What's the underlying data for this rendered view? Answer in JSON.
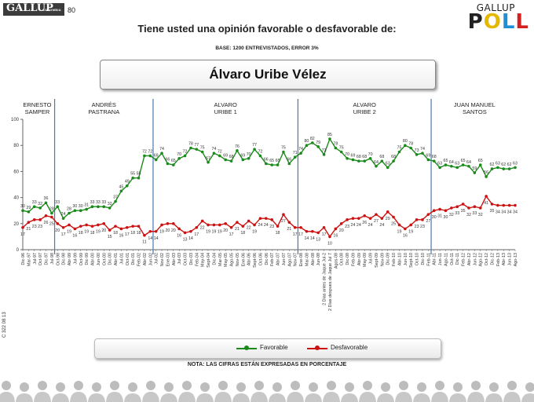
{
  "header": {
    "logo_text": "GALLUP",
    "logo_sub": "COLOMBIA",
    "page_number": "80",
    "poll_logo_top": "GALLUP",
    "poll_logo_bottom": "POLL",
    "title": "Tiene usted una opinión favorable o desfavorable de:",
    "base": "BASE: 1200 ENTREVISTADOS, ERROR 3%",
    "subject": "Álvaro Uribe Vélez"
  },
  "side_code": "C 322 08 13",
  "legend": {
    "favorable": "Favorable",
    "desfavorable": "Desfavorable"
  },
  "note": "NOTA: LAS CIFRAS ESTÁN EXPRESADAS EN PORCENTAJE",
  "colors": {
    "favorable": "#1a8a1a",
    "desfavorable": "#cc1111",
    "divider": "#4a78b0"
  },
  "chart_data": {
    "type": "line",
    "ylim": [
      0,
      100
    ],
    "yticks": [
      0,
      20,
      40,
      60,
      80,
      100
    ],
    "grid": false,
    "legend_position": "bottom",
    "periods": [
      {
        "label": "ERNESTO\nSAMPER",
        "start": 0,
        "end": 6
      },
      {
        "label": "ANDRÉS\nPASTRANA",
        "start": 6,
        "end": 23
      },
      {
        "label": "ALVARO\nURIBE 1",
        "start": 23,
        "end": 48
      },
      {
        "label": "ALVARO\nURIBE 2",
        "start": 48,
        "end": 71
      },
      {
        "label": "JUAN MANUEL\nSANTOS",
        "start": 71,
        "end": 88
      }
    ],
    "x": [
      "Dic-96",
      "Mar-97",
      "Jul-97",
      "Oct-97",
      "Dic-97",
      "Jul-98",
      "Oct-98",
      "Dic-98",
      "Abr-99",
      "Jul-99",
      "Oct-99",
      "Dic-99",
      "Abr-00",
      "Jun-00",
      "Oct-00",
      "Dic-00",
      "Abr-01",
      "Jul-01",
      "Oct-01",
      "Dic-01",
      "Feb-02",
      "Abr-02",
      "Jun-02",
      "Jul-02",
      "Nov-02",
      "Ene-03",
      "Abr-03",
      "Jul-03",
      "Oct-03",
      "Dic-03",
      "Feb-04",
      "May-04",
      "Sept-04",
      "Dic-04",
      "Mar-05",
      "May-05",
      "Ago-05",
      "Nov-05",
      "Ene-06",
      "Abr-06",
      "Sept-06",
      "Oct-06",
      "Dic-06",
      "Feb-07",
      "Abr-07",
      "Jun-07",
      "Ago-07",
      "Nov-07",
      "Ene-08",
      "Mar-08",
      "Abr-08",
      "Jun-08",
      "2 Dias antes de Jaque Jul-2",
      "2 Días despues de Jaque Jul 7",
      "Agos-08",
      "Oct-08",
      "Dic-08",
      "Feb-09",
      "Abr-09",
      "May-09",
      "Jul-09",
      "Sept-09",
      "Nov-09",
      "Dic-09",
      "Feb-10",
      "Abr-10",
      "Jun-10",
      "Sept-10",
      "Oct-10",
      "Dic-10",
      "Feb-11",
      "Abr-11",
      "Jun-11",
      "Ago-11",
      "Oct-11",
      "Dic-11",
      "Feb-12",
      "Abr-12",
      "Jun-12",
      "Ago-12",
      "Oct-12",
      "Dic-12",
      "Feb-13",
      "Abr-13",
      "Jun-13",
      "Ago-13"
    ],
    "series": [
      {
        "name": "Favorable",
        "values": [
          30,
          29,
          33,
          32,
          36,
          28,
          33,
          24,
          28,
          30,
          30,
          31,
          33,
          33,
          33,
          32,
          37,
          45,
          49,
          55,
          55,
          72,
          72,
          69,
          74,
          66,
          65,
          70,
          72,
          78,
          77,
          75,
          67,
          74,
          72,
          69,
          68,
          76,
          69,
          70,
          77,
          72,
          66,
          65,
          65,
          75,
          66,
          71,
          74,
          80,
          82,
          79,
          73,
          85,
          78,
          75,
          70,
          69,
          68,
          68,
          70,
          64,
          68,
          63,
          68,
          75,
          80,
          78,
          73,
          74,
          69,
          68,
          63,
          65,
          64,
          63,
          65,
          64,
          59,
          65,
          56,
          62,
          63,
          62,
          62,
          63
        ],
        "value_labels": [
          30,
          29,
          33,
          32,
          36,
          28,
          33,
          24,
          28,
          30,
          30,
          31,
          33,
          33,
          33,
          32,
          37,
          45,
          49,
          55,
          55,
          72,
          72,
          69,
          74,
          66,
          65,
          70,
          72,
          78,
          77,
          75,
          67,
          74,
          72,
          69,
          68,
          76,
          69,
          70,
          77,
          72,
          66,
          65,
          65,
          75,
          66,
          71,
          74,
          80,
          82,
          79,
          73,
          85,
          78,
          75,
          70,
          69,
          68,
          68,
          70,
          64,
          68,
          63,
          68,
          75,
          80,
          78,
          73,
          74,
          69,
          68,
          63,
          65,
          64,
          63,
          65,
          64,
          59,
          65,
          56,
          62,
          63,
          62,
          62,
          63
        ]
      },
      {
        "name": "Desfavorable",
        "values": [
          17,
          21,
          23,
          23,
          26,
          25,
          20,
          17,
          19,
          16,
          18,
          19,
          18,
          19,
          20,
          15,
          18,
          16,
          17,
          18,
          18,
          11,
          14,
          14,
          19,
          20,
          20,
          16,
          13,
          14,
          17,
          22,
          19,
          19,
          19,
          20,
          17,
          21,
          18,
          22,
          19,
          24,
          24,
          23,
          18,
          27,
          21,
          17,
          17,
          14,
          14,
          13,
          17,
          10,
          16,
          20,
          23,
          24,
          24,
          26,
          24,
          27,
          24,
          29,
          25,
          19,
          16,
          19,
          23,
          23,
          27,
          30,
          31,
          30,
          32,
          33,
          35,
          32,
          33,
          32,
          41,
          35,
          34,
          34,
          34,
          34
        ],
        "value_labels": [
          17,
          21,
          23,
          23,
          26,
          25,
          20,
          17,
          19,
          16,
          18,
          19,
          18,
          19,
          20,
          15,
          18,
          16,
          17,
          18,
          18,
          11,
          14,
          14,
          19,
          20,
          20,
          16,
          13,
          14,
          17,
          22,
          19,
          19,
          19,
          20,
          17,
          21,
          18,
          22,
          19,
          24,
          24,
          23,
          18,
          27,
          21,
          17,
          17,
          14,
          14,
          13,
          17,
          10,
          16,
          20,
          23,
          24,
          24,
          26,
          24,
          27,
          24,
          29,
          25,
          19,
          16,
          19,
          23,
          23,
          27,
          30,
          31,
          30,
          32,
          33,
          35,
          32,
          33,
          32,
          41,
          35,
          34,
          34,
          34,
          34
        ]
      }
    ]
  }
}
